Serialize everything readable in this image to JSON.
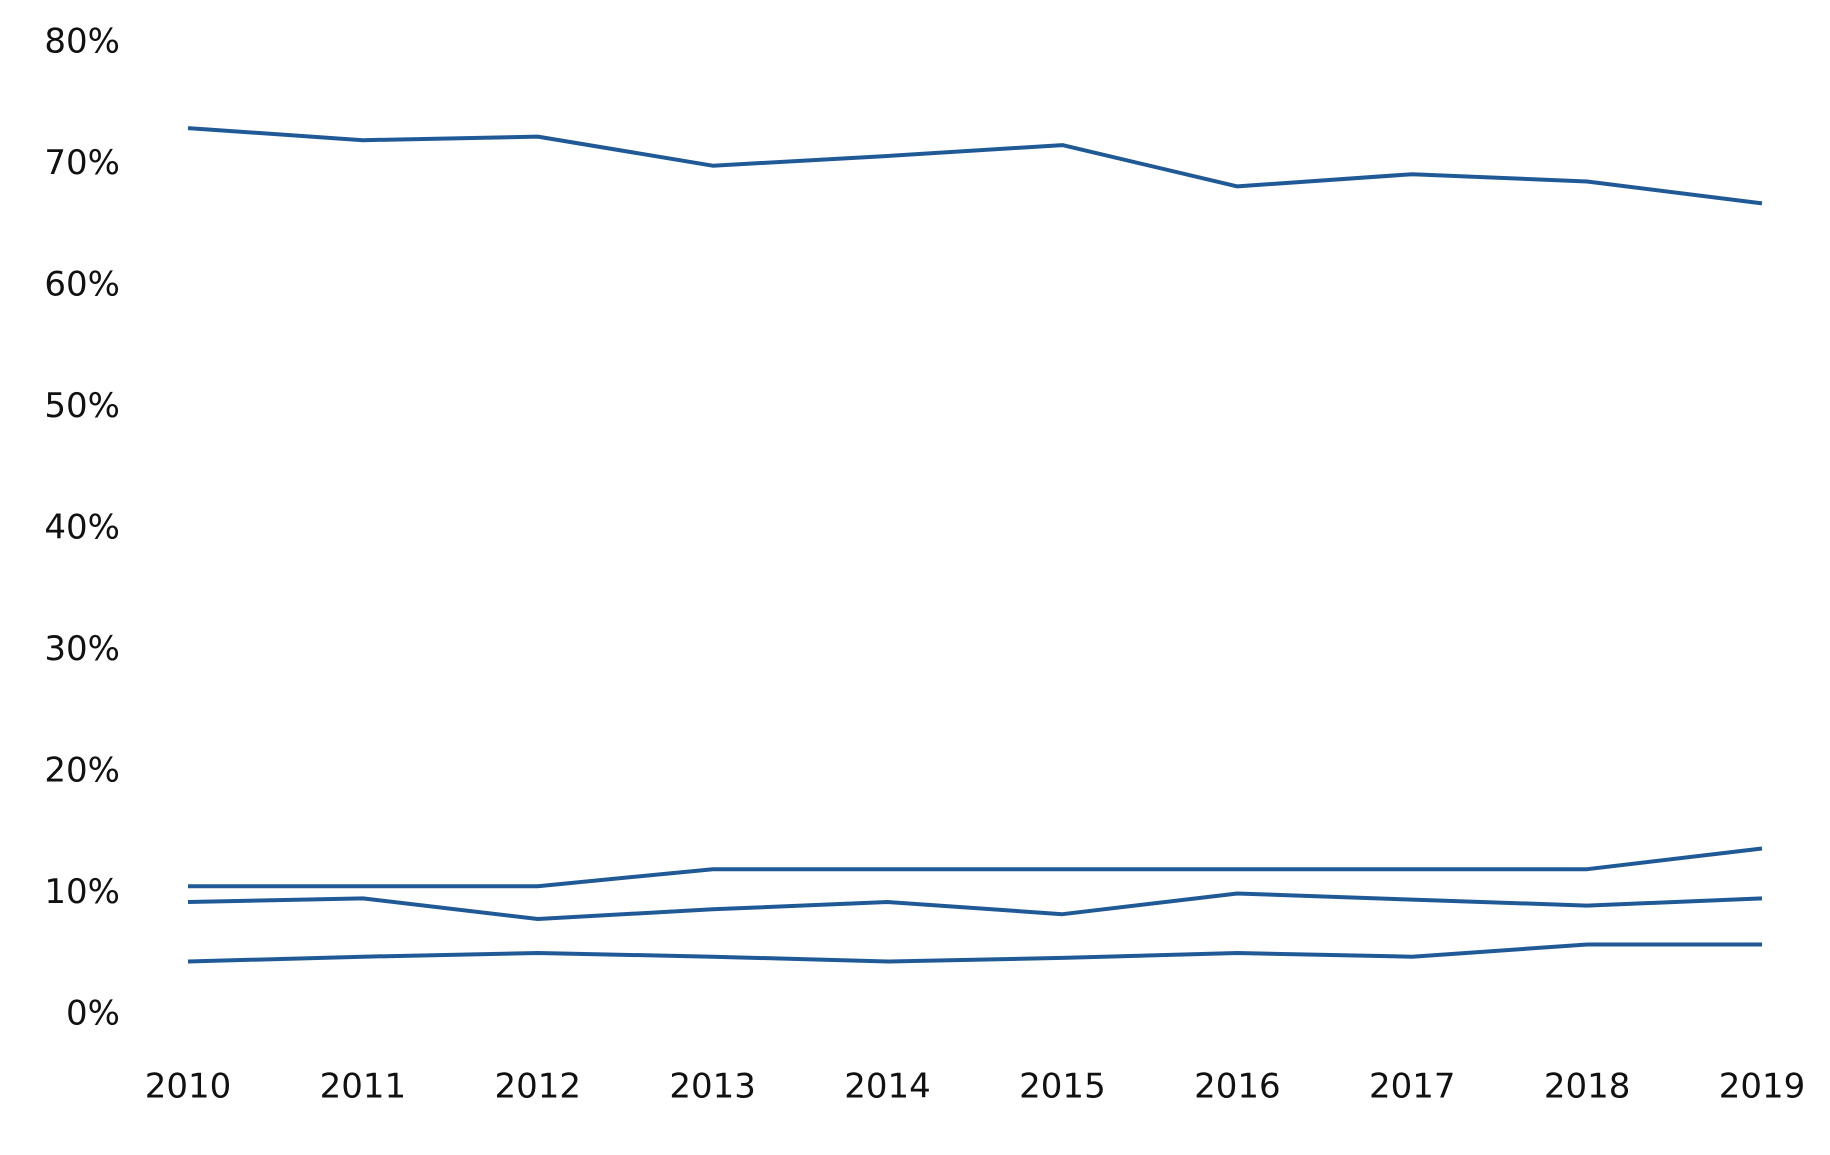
{
  "chart_data": {
    "type": "line",
    "x": [
      "2010",
      "2011",
      "2012",
      "2013",
      "2014",
      "2015",
      "2016",
      "2017",
      "2018",
      "2019"
    ],
    "ylim": [
      0,
      80
    ],
    "yticks": [
      0,
      10,
      20,
      30,
      40,
      50,
      60,
      70,
      80
    ],
    "ytick_labels": [
      "0%",
      "10%",
      "20%",
      "30%",
      "40%",
      "50%",
      "60%",
      "70%",
      "80%"
    ],
    "grid": false,
    "legend": "none",
    "line_color": "#1f5a96",
    "series": [
      {
        "values": [
          73.0,
          72.0,
          72.3,
          69.9,
          70.7,
          71.6,
          68.2,
          69.2,
          68.6,
          66.8
        ]
      },
      {
        "values": [
          10.6,
          10.6,
          10.6,
          12.0,
          12.0,
          12.0,
          12.0,
          12.0,
          12.0,
          13.7
        ]
      },
      {
        "values": [
          9.3,
          9.6,
          7.9,
          8.7,
          9.3,
          8.3,
          10.0,
          9.5,
          9.0,
          9.6
        ]
      },
      {
        "values": [
          4.4,
          4.8,
          5.1,
          4.8,
          4.4,
          4.7,
          5.1,
          4.8,
          5.8,
          5.8
        ]
      }
    ]
  }
}
